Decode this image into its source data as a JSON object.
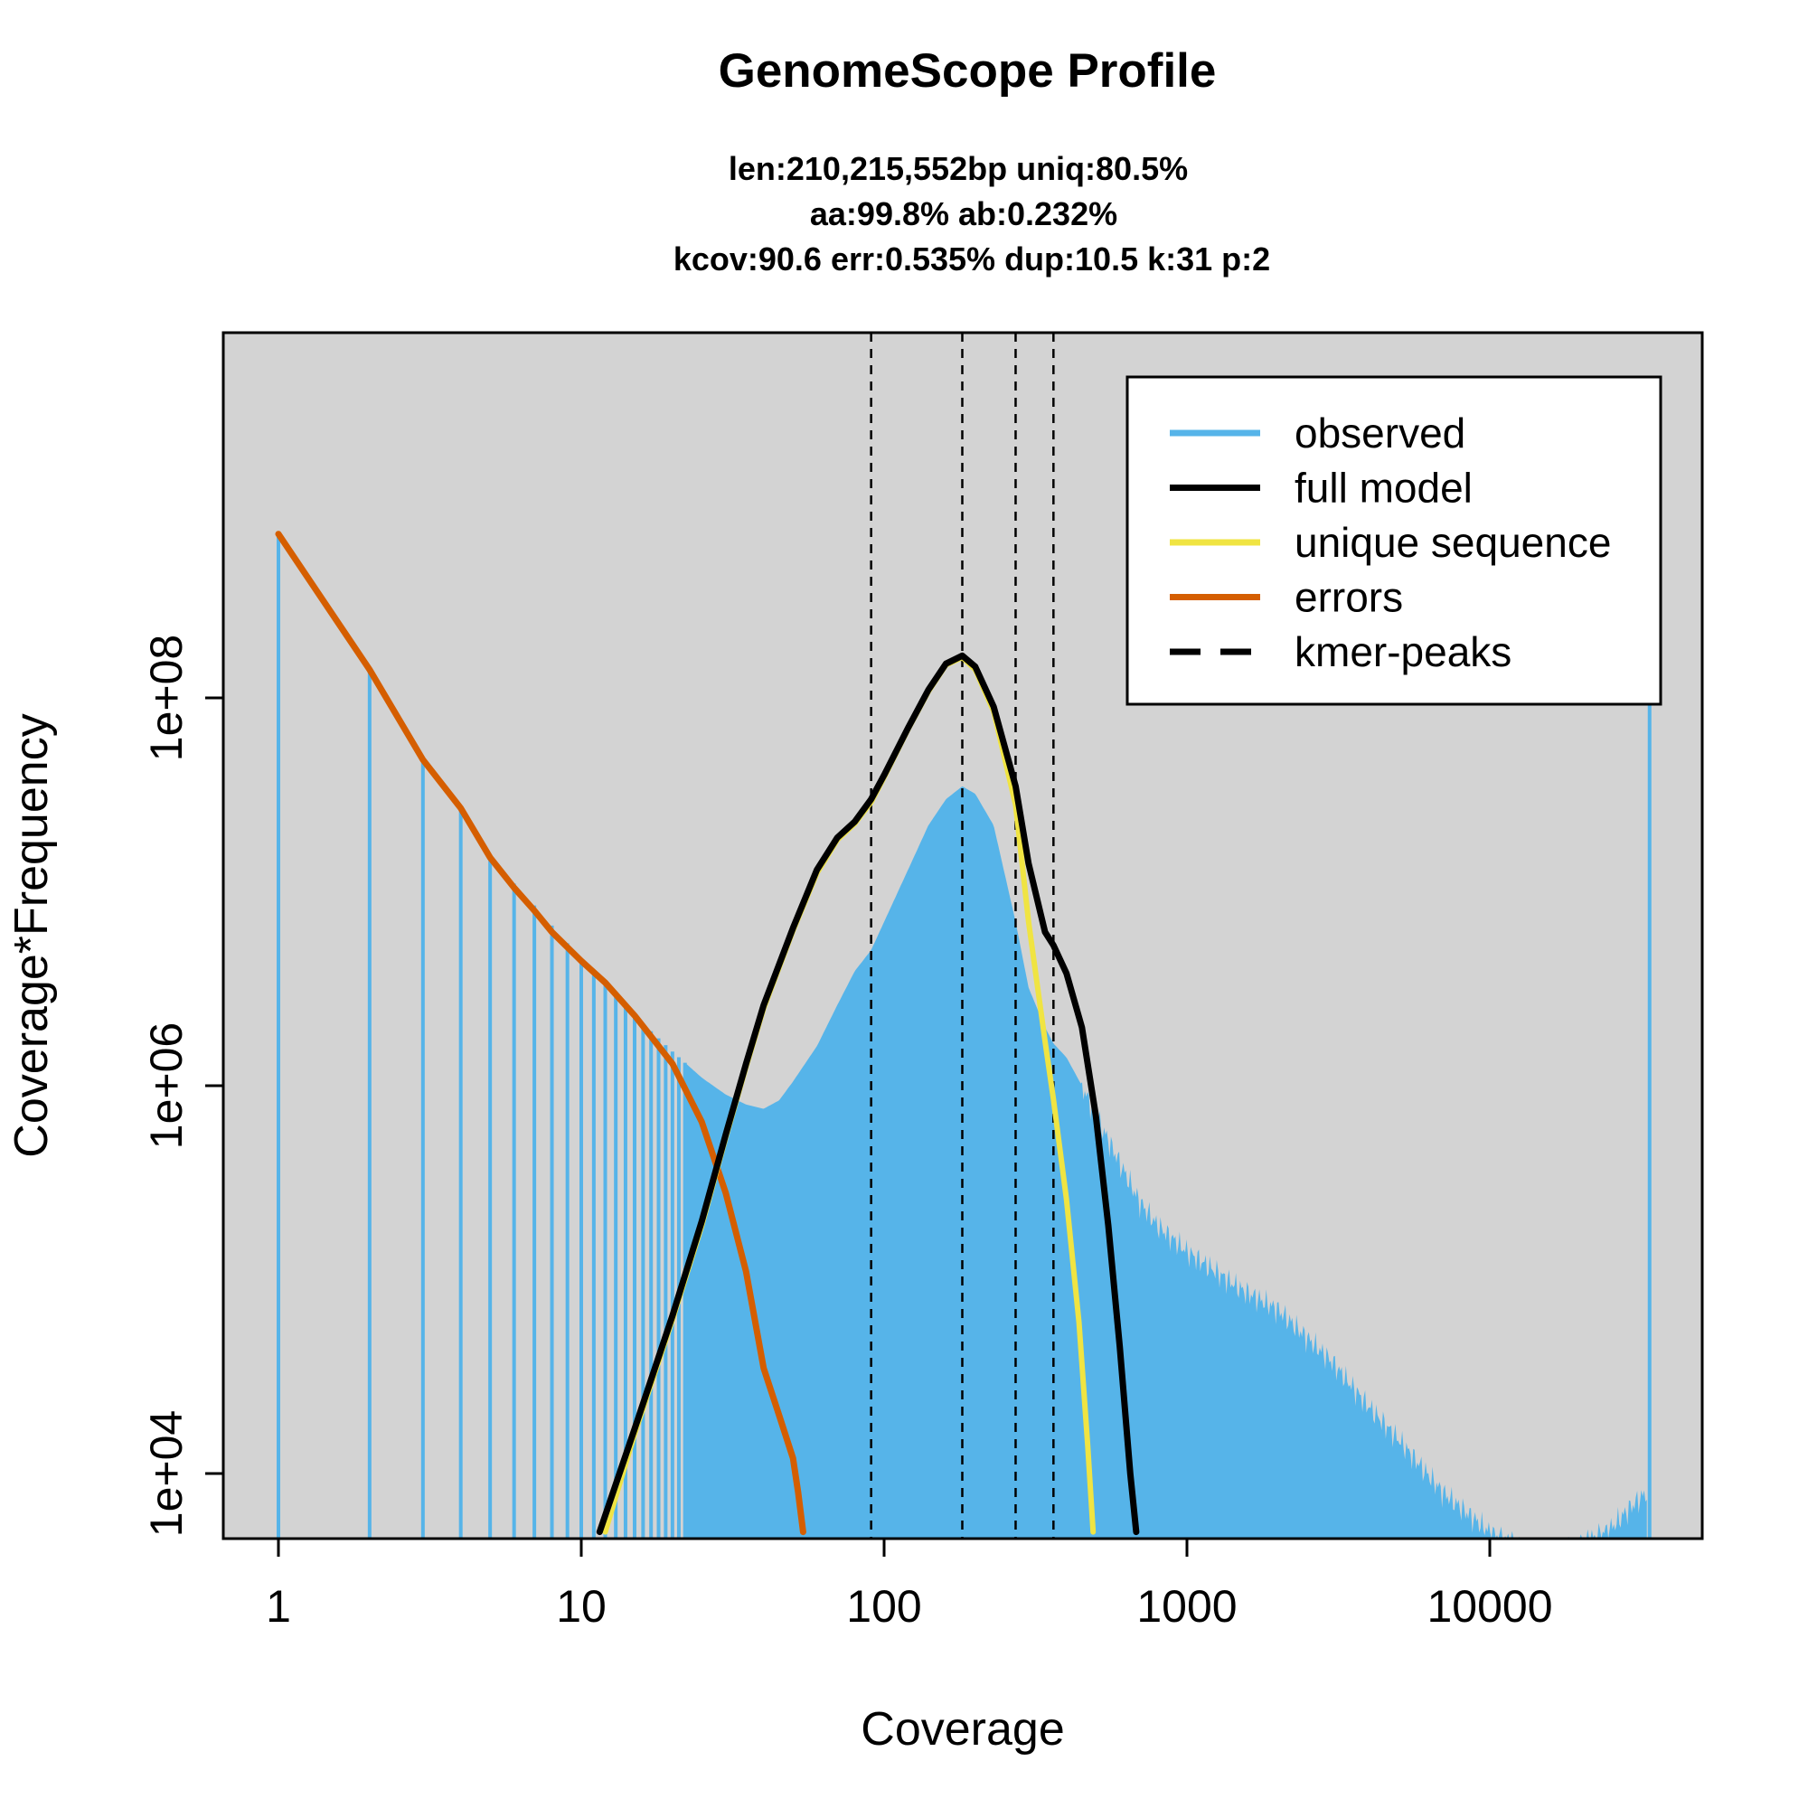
{
  "chart_data": {
    "type": "line",
    "title": "GenomeScope Profile",
    "subtitle_lines": [
      "len:210,215,552bp uniq:80.5%",
      "aa:99.8% ab:0.232%",
      "kcov:90.6 err:0.535%  dup:10.5  k:31 p:2"
    ],
    "xlabel": "Coverage",
    "ylabel": "Coverage*Frequency",
    "x_scale": "log",
    "y_scale": "log",
    "xlim": [
      0.65,
      50000
    ],
    "ylim": [
      5000,
      1200000000
    ],
    "x_ticks": [
      {
        "value": 1,
        "label": "1"
      },
      {
        "value": 10,
        "label": "10"
      },
      {
        "value": 100,
        "label": "100"
      },
      {
        "value": 1000,
        "label": "1000"
      },
      {
        "value": 10000,
        "label": "10000"
      }
    ],
    "y_ticks": [
      {
        "value": 10000,
        "label": "1e+04"
      },
      {
        "value": 1000000,
        "label": "1e+06"
      },
      {
        "value": 100000000,
        "label": "1e+08"
      }
    ],
    "grid": false,
    "background_color": "#d3d3d3",
    "legend_position": "top-right",
    "legend": [
      {
        "label": "observed",
        "color": "#56b4e9",
        "style": "solid"
      },
      {
        "label": "full model",
        "color": "#000000",
        "style": "solid"
      },
      {
        "label": "unique sequence",
        "color": "#f0e442",
        "style": "solid"
      },
      {
        "label": "errors",
        "color": "#d55e00",
        "style": "solid"
      },
      {
        "label": "kmer-peaks",
        "color": "#000000",
        "style": "dashed"
      }
    ],
    "kmer_peaks": [
      90.6,
      181.2,
      271.8,
      362.4
    ],
    "series": [
      {
        "name": "observed",
        "color": "#56b4e9",
        "style": "histogram",
        "points": [
          [
            1,
            700000000
          ],
          [
            2,
            140000000
          ],
          [
            3,
            48000000
          ],
          [
            4,
            27000000
          ],
          [
            5,
            15000000
          ],
          [
            7,
            8500000
          ],
          [
            10,
            4500000
          ],
          [
            15,
            2300000
          ],
          [
            20,
            1500000
          ],
          [
            25,
            1100000
          ],
          [
            30,
            900000
          ],
          [
            35,
            800000
          ],
          [
            40,
            760000
          ],
          [
            45,
            840000
          ],
          [
            50,
            1050000
          ],
          [
            60,
            1600000
          ],
          [
            70,
            2600000
          ],
          [
            80,
            3900000
          ],
          [
            90.6,
            5000000
          ],
          [
            100,
            7000000
          ],
          [
            120,
            13000000
          ],
          [
            140,
            22000000
          ],
          [
            160,
            30000000
          ],
          [
            181.2,
            35000000
          ],
          [
            200,
            32000000
          ],
          [
            230,
            22000000
          ],
          [
            271.8,
            7000000
          ],
          [
            300,
            3200000
          ],
          [
            340,
            2000000
          ],
          [
            362.4,
            1650000
          ],
          [
            400,
            1400000
          ],
          [
            450,
            1000000
          ],
          [
            500,
            700000
          ],
          [
            600,
            400000
          ],
          [
            700,
            250000
          ],
          [
            800,
            190000
          ],
          [
            1000,
            140000
          ],
          [
            1500,
            90000
          ],
          [
            2000,
            70000
          ],
          [
            3000,
            38000
          ],
          [
            4000,
            22000
          ],
          [
            5000,
            15000
          ],
          [
            7000,
            8000
          ],
          [
            10000,
            5000
          ],
          [
            15000,
            3600
          ],
          [
            20000,
            4300
          ],
          [
            25000,
            5200
          ],
          [
            30000,
            7000
          ],
          [
            33000,
            8000
          ],
          [
            33700,
            95000000
          ]
        ]
      },
      {
        "name": "full model",
        "color": "#000000",
        "style": "solid",
        "points": [
          [
            11.5,
            5000
          ],
          [
            15,
            17000
          ],
          [
            20,
            65000
          ],
          [
            25,
            200000
          ],
          [
            30,
            560000
          ],
          [
            35,
            1300000
          ],
          [
            40,
            2600000
          ],
          [
            50,
            6500000
          ],
          [
            60,
            13000000
          ],
          [
            70,
            19000000
          ],
          [
            80,
            23000000
          ],
          [
            90.6,
            30000000
          ],
          [
            100,
            40000000
          ],
          [
            120,
            70000000
          ],
          [
            140,
            110000000
          ],
          [
            160,
            150000000
          ],
          [
            181.2,
            165000000
          ],
          [
            200,
            145000000
          ],
          [
            230,
            90000000
          ],
          [
            271.8,
            35000000
          ],
          [
            300,
            14000000
          ],
          [
            340,
            6200000
          ],
          [
            362.4,
            5300000
          ],
          [
            400,
            3800000
          ],
          [
            450,
            2000000
          ],
          [
            500,
            700000
          ],
          [
            550,
            190000
          ],
          [
            600,
            45000
          ],
          [
            650,
            10000
          ],
          [
            680,
            5000
          ]
        ]
      },
      {
        "name": "unique sequence",
        "color": "#f0e442",
        "style": "solid",
        "points": [
          [
            12,
            5000
          ],
          [
            15,
            16000
          ],
          [
            20,
            62000
          ],
          [
            25,
            190000
          ],
          [
            30,
            540000
          ],
          [
            35,
            1250000
          ],
          [
            40,
            2500000
          ],
          [
            50,
            6300000
          ],
          [
            60,
            12500000
          ],
          [
            70,
            18500000
          ],
          [
            80,
            22500000
          ],
          [
            90.6,
            29000000
          ],
          [
            100,
            39000000
          ],
          [
            120,
            69000000
          ],
          [
            140,
            108000000
          ],
          [
            160,
            148000000
          ],
          [
            181.2,
            162000000
          ],
          [
            200,
            140000000
          ],
          [
            230,
            85000000
          ],
          [
            271.8,
            28000000
          ],
          [
            300,
            7000000
          ],
          [
            340,
            1700000
          ],
          [
            362.4,
            850000
          ],
          [
            400,
            260000
          ],
          [
            440,
            60000
          ],
          [
            470,
            14000
          ],
          [
            490,
            5000
          ]
        ]
      },
      {
        "name": "errors",
        "color": "#d55e00",
        "style": "solid",
        "points": [
          [
            1,
            700000000
          ],
          [
            2,
            140000000
          ],
          [
            3,
            48000000
          ],
          [
            4,
            27000000
          ],
          [
            5,
            15000000
          ],
          [
            6,
            10500000
          ],
          [
            7,
            8000000
          ],
          [
            8,
            6200000
          ],
          [
            10,
            4400000
          ],
          [
            12,
            3400000
          ],
          [
            15,
            2300000
          ],
          [
            20,
            1300000
          ],
          [
            25,
            650000
          ],
          [
            30,
            280000
          ],
          [
            35,
            110000
          ],
          [
            40,
            35000
          ],
          [
            45,
            20000
          ],
          [
            50,
            12000
          ],
          [
            52,
            8000
          ],
          [
            54,
            5000
          ]
        ]
      }
    ]
  }
}
